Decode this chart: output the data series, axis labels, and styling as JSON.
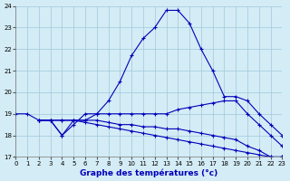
{
  "xlabel": "Graphe des températures (°c)",
  "background_color": "#d4ecf5",
  "grid_color": "#a0c8dc",
  "line_color": "#0000bb",
  "ylim": [
    17,
    24
  ],
  "xlim": [
    0,
    23
  ],
  "yticks": [
    17,
    18,
    19,
    20,
    21,
    22,
    23,
    24
  ],
  "xticks": [
    0,
    1,
    2,
    3,
    4,
    5,
    6,
    7,
    8,
    9,
    10,
    11,
    12,
    13,
    14,
    15,
    16,
    17,
    18,
    19,
    20,
    21,
    22,
    23
  ],
  "line1_x": [
    0,
    1,
    2,
    3,
    4,
    5,
    6,
    7,
    8,
    9,
    10,
    11,
    12,
    13,
    14,
    15,
    16,
    17,
    18,
    19,
    20,
    21,
    22,
    23
  ],
  "line1_y": [
    19,
    19,
    18.7,
    18.7,
    18.0,
    18.5,
    19.0,
    19.0,
    19.6,
    20.5,
    21.7,
    22.5,
    23.0,
    23.8,
    23.8,
    23.2,
    22.0,
    21.0,
    19.8,
    19.8,
    19.6,
    19.0,
    18.5,
    18.0
  ],
  "line2_x": [
    2,
    3,
    4,
    5,
    6,
    7,
    8,
    9,
    10,
    11,
    12,
    13,
    14,
    15,
    16,
    17,
    18,
    19,
    20,
    21,
    22,
    23
  ],
  "line2_y": [
    18.7,
    18.7,
    18.7,
    18.7,
    18.7,
    19.0,
    19.0,
    19.0,
    19.0,
    19.0,
    19.0,
    19.0,
    19.2,
    19.3,
    19.4,
    19.5,
    19.6,
    19.6,
    19.0,
    18.5,
    18.0,
    17.5
  ],
  "line3_x": [
    2,
    3,
    4,
    5,
    6,
    7,
    8,
    9,
    10,
    11,
    12,
    13,
    14,
    15,
    16,
    17,
    18,
    19,
    20,
    21,
    22,
    23
  ],
  "line3_y": [
    18.7,
    18.7,
    18.0,
    18.7,
    18.7,
    18.7,
    18.6,
    18.5,
    18.5,
    18.4,
    18.4,
    18.3,
    18.3,
    18.2,
    18.1,
    18.0,
    17.9,
    17.8,
    17.5,
    17.3,
    17.0,
    17.0
  ],
  "line4_x": [
    2,
    3,
    4,
    5,
    6,
    7,
    8,
    9,
    10,
    11,
    12,
    13,
    14,
    15,
    16,
    17,
    18,
    19,
    20,
    21,
    22,
    23
  ],
  "line4_y": [
    18.7,
    18.7,
    18.7,
    18.7,
    18.6,
    18.5,
    18.4,
    18.3,
    18.2,
    18.1,
    18.0,
    17.9,
    17.8,
    17.7,
    17.6,
    17.5,
    17.4,
    17.3,
    17.2,
    17.1,
    17.0,
    17.0
  ]
}
